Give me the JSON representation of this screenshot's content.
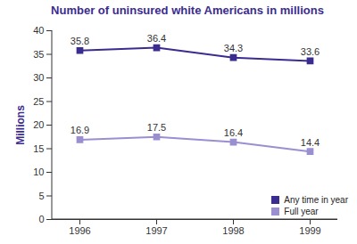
{
  "chart_data": {
    "type": "line",
    "title": "Number of uninsured white Americans in millions",
    "y_label": "Millions",
    "categories": [
      "1996",
      "1997",
      "1998",
      "1999"
    ],
    "series": [
      {
        "name": "Any time in year",
        "color": "#3b2c8f",
        "values": [
          35.8,
          36.4,
          34.3,
          33.6
        ]
      },
      {
        "name": "Full year",
        "color": "#9a8fd0",
        "values": [
          16.9,
          17.5,
          16.4,
          14.4
        ]
      }
    ],
    "ylim": [
      0,
      40
    ],
    "yticks": [
      0,
      5,
      10,
      15,
      20,
      25,
      30,
      35,
      40
    ],
    "grid": false,
    "legend": "bottom-right",
    "data_labels": true,
    "marker": "square",
    "line_style": "solid"
  }
}
